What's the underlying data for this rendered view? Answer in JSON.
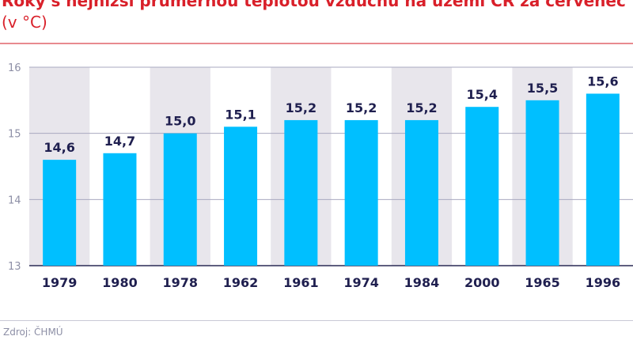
{
  "chart_data": {
    "type": "bar",
    "title": "Roky s nejnižší průměrnou teplotou vzduchu na území ČR za červenec",
    "unit": "(v °C)",
    "categories": [
      "1979",
      "1980",
      "1978",
      "1962",
      "1961",
      "1974",
      "1984",
      "2000",
      "1965",
      "1996"
    ],
    "values": [
      14.6,
      14.7,
      15.0,
      15.1,
      15.2,
      15.2,
      15.2,
      15.4,
      15.5,
      15.6
    ],
    "data_labels": [
      "14,6",
      "14,7",
      "15,0",
      "15,1",
      "15,2",
      "15,2",
      "15,2",
      "15,4",
      "15,5",
      "15,6"
    ],
    "ylim": [
      13,
      16
    ],
    "yticks": [
      13,
      14,
      15,
      16
    ],
    "grid": true,
    "bar_color": "#00bfff",
    "label_color": "#1f1f4f",
    "band_color": "#e8e6ec"
  },
  "source": "Zdroj: ČHMÚ"
}
